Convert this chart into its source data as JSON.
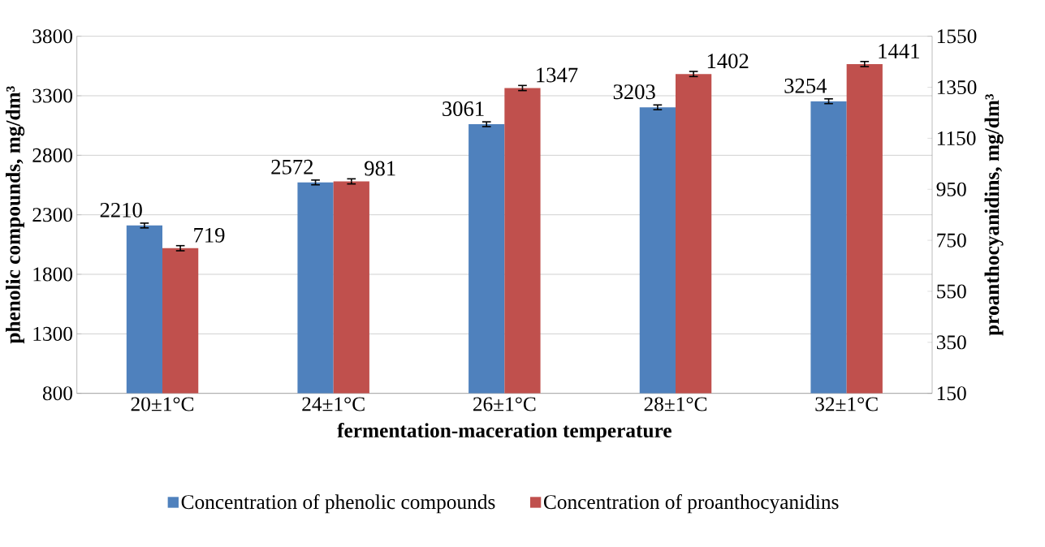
{
  "chart_data": {
    "type": "bar",
    "xlabel": "fermentation-maceration temperature",
    "ylabel": "phenolic compounds, mg/dm³",
    "y2label": "proanthocyanidins, mg/dm³",
    "categories": [
      "20±1°C",
      "24±1°C",
      "26±1°C",
      "28±1°C",
      "32±1°C"
    ],
    "series": [
      {
        "name": "Concentration of phenolic compounds",
        "color": "#4f81bd",
        "values": [
          2210,
          2572,
          3061,
          3203,
          3254
        ],
        "errors": [
          20,
          20,
          20,
          20,
          20
        ],
        "value_labels": [
          "2210",
          "2572",
          "3061",
          "3203",
          "3254"
        ]
      },
      {
        "name": "Concentration of proanthocyanidins",
        "color": "#c0504d",
        "axis": "y2",
        "values": [
          719,
          981,
          1347,
          1402,
          1441
        ],
        "errors": [
          10,
          10,
          10,
          10,
          10
        ],
        "value_labels": [
          "719",
          "981",
          "1347",
          "1402",
          "1441"
        ]
      }
    ],
    "ylim": [
      800,
      3800
    ],
    "yticks": [
      800,
      1300,
      1800,
      2300,
      2800,
      3300,
      3800
    ],
    "y2lim": [
      150,
      1550
    ],
    "y2ticks": [
      150,
      350,
      550,
      750,
      950,
      1150,
      1350,
      1550
    ],
    "grid": "y",
    "legend": "bottom"
  }
}
